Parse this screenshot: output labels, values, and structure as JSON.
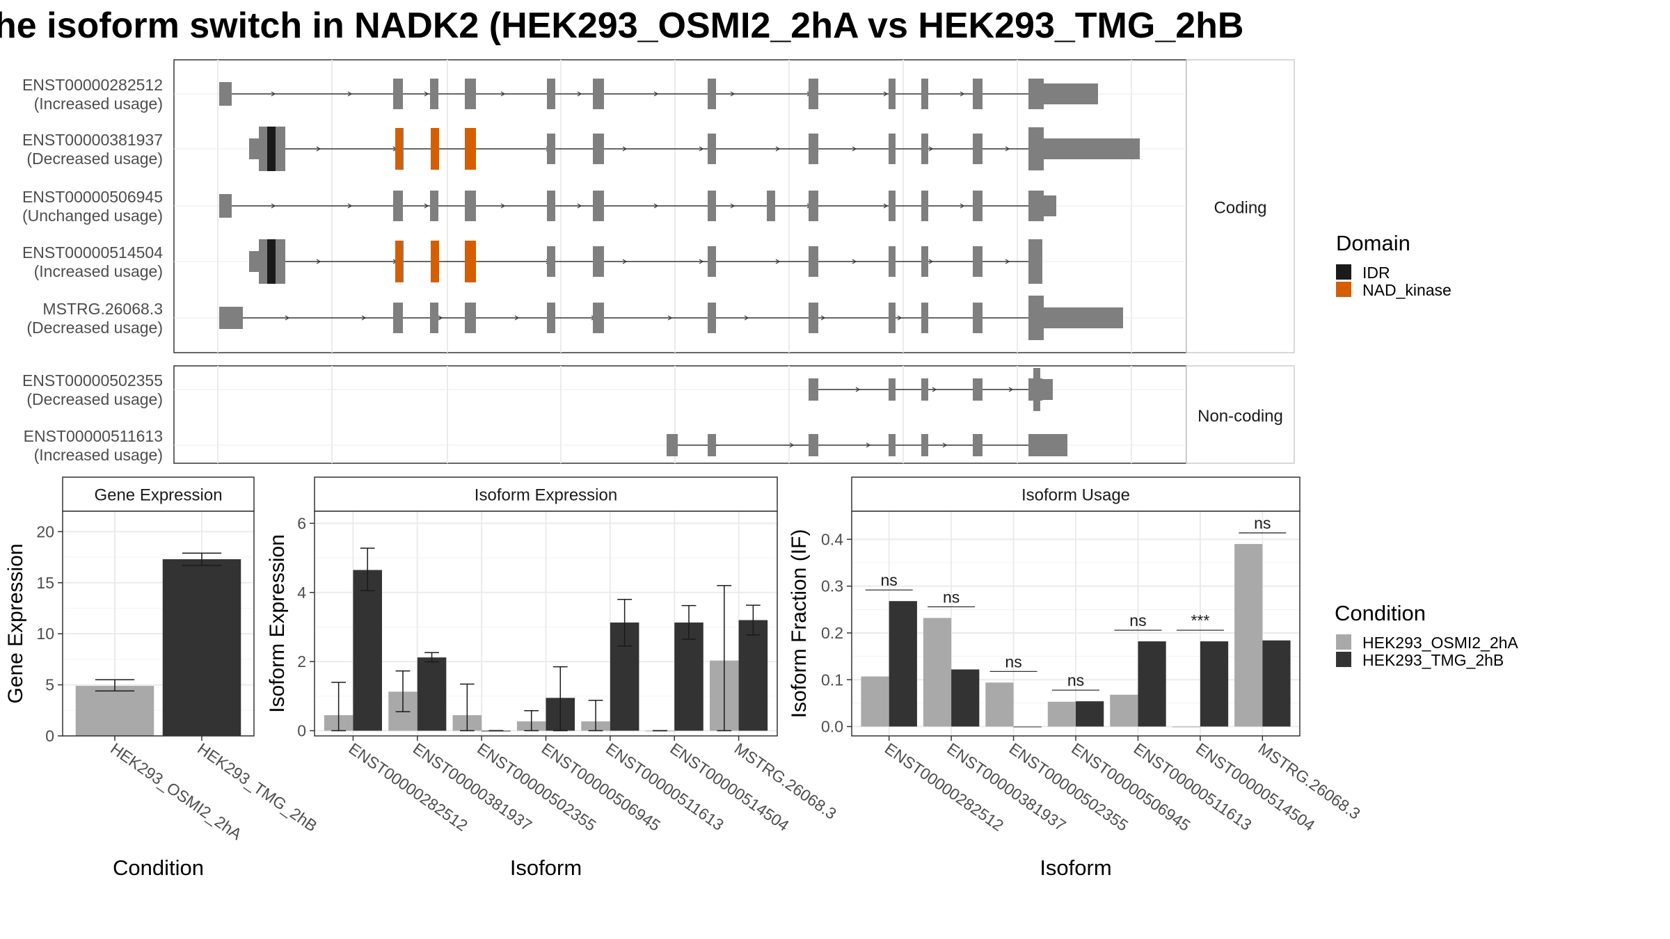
{
  "title": "he isoform switch in NADK2 (HEK293_OSMI2_2hA vs HEK293_TMG_2hB",
  "colors": {
    "exon": "#7f7f7f",
    "IDR": "#1a1a1a",
    "NAD_kinase": "#d55e00",
    "cond_a": "#a9a9a9",
    "cond_b": "#333333",
    "grid": "#ebebeb",
    "strip": "#ffffff",
    "border": "#333333"
  },
  "chart_data": [
    {
      "type": "gene-structure",
      "domain_legend": {
        "title": "Domain",
        "entries": [
          "IDR",
          "NAD_kinase"
        ]
      },
      "panels": [
        {
          "label": "Coding",
          "transcripts": [
            {
              "id": "ENST00000282512",
              "usage": "(Increased usage)"
            },
            {
              "id": "ENST00000381937",
              "usage": "(Decreased usage)"
            },
            {
              "id": "ENST00000506945",
              "usage": "(Unchanged usage)"
            },
            {
              "id": "ENST00000514504",
              "usage": "(Increased usage)"
            },
            {
              "id": "MSTRG.26068.3",
              "usage": "(Decreased usage)"
            }
          ]
        },
        {
          "label": "Non-coding",
          "transcripts": [
            {
              "id": "ENST00000502355",
              "usage": "(Decreased usage)"
            },
            {
              "id": "ENST00000511613",
              "usage": "(Increased usage)"
            }
          ]
        }
      ]
    },
    {
      "type": "bar",
      "title": "Gene Expression",
      "xlabel": "Condition",
      "ylabel": "Gene Expression",
      "ylim": [
        0,
        22
      ],
      "yticks": [
        0,
        5,
        10,
        15,
        20
      ],
      "categories": [
        "HEK293_OSMI2_2hA",
        "HEK293_TMG_2hB"
      ],
      "values": [
        4.9,
        17.3
      ],
      "errors": [
        [
          4.4,
          5.5
        ],
        [
          16.7,
          17.9
        ]
      ]
    },
    {
      "type": "bar",
      "title": "Isoform Expression",
      "xlabel": "Isoform",
      "ylabel": "Isoform Expression",
      "ylim": [
        -0.15,
        6.35
      ],
      "yticks": [
        0,
        2,
        4,
        6
      ],
      "categories": [
        "ENST00000282512",
        "ENST00000381937",
        "ENST00000502355",
        "ENST00000506945",
        "ENST00000511613",
        "ENST00000514504",
        "MSTRG.26068.3"
      ],
      "series": [
        {
          "name": "HEK293_OSMI2_2hA",
          "values": [
            0.45,
            1.13,
            0.45,
            0.27,
            0.27,
            0.0,
            2.03
          ],
          "errors": [
            [
              0.0,
              1.4
            ],
            [
              0.55,
              1.73
            ],
            [
              0.0,
              1.35
            ],
            [
              0.0,
              0.58
            ],
            [
              0.0,
              0.88
            ],
            [
              0.0,
              0.0
            ],
            [
              0.0,
              4.2
            ]
          ]
        },
        {
          "name": "HEK293_TMG_2hB",
          "values": [
            4.65,
            2.12,
            0.0,
            0.95,
            3.13,
            3.13,
            3.2
          ],
          "errors": [
            [
              4.05,
              5.28
            ],
            [
              1.99,
              2.26
            ],
            [
              0.0,
              0.0
            ],
            [
              0.0,
              1.85
            ],
            [
              2.45,
              3.8
            ],
            [
              2.65,
              3.62
            ],
            [
              2.77,
              3.63
            ]
          ]
        }
      ]
    },
    {
      "type": "bar",
      "title": "Isoform Usage",
      "xlabel": "Isoform",
      "ylabel": "Isoform Fraction (IF)",
      "ylim": [
        -0.02,
        0.46
      ],
      "yticks": [
        0.0,
        0.1,
        0.2,
        0.3,
        0.4
      ],
      "categories": [
        "ENST00000282512",
        "ENST00000381937",
        "ENST00000502355",
        "ENST00000506945",
        "ENST00000511613",
        "ENST00000514504",
        "MSTRG.26068.3"
      ],
      "series": [
        {
          "name": "HEK293_OSMI2_2hA",
          "values": [
            0.107,
            0.232,
            0.094,
            0.053,
            0.068,
            0.0,
            0.39
          ]
        },
        {
          "name": "HEK293_TMG_2hB",
          "values": [
            0.268,
            0.122,
            0.0,
            0.054,
            0.182,
            0.182,
            0.184
          ]
        }
      ],
      "significance": [
        "ns",
        "ns",
        "ns",
        "ns",
        "ns",
        "***",
        "ns"
      ]
    }
  ],
  "condition_legend": {
    "title": "Condition",
    "entries": [
      "HEK293_OSMI2_2hA",
      "HEK293_TMG_2hB"
    ]
  }
}
